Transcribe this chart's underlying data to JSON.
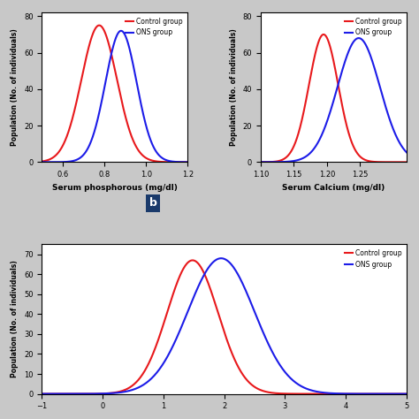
{
  "subplot_a": {
    "control_mean": 0.775,
    "control_std": 0.085,
    "control_peak": 75,
    "ons_mean": 0.88,
    "ons_std": 0.075,
    "ons_peak": 72,
    "xlim": [
      0.5,
      1.2
    ],
    "xticks": [
      0.6,
      0.8,
      1.0,
      1.2
    ],
    "ylim": [
      0,
      82
    ],
    "yticks": [
      0,
      20,
      40,
      60,
      80
    ],
    "xlabel": "Serum phosphorous (mg/dl)",
    "ylabel": "Population (No. of individuals)"
  },
  "subplot_b": {
    "control_mean": 1.195,
    "control_std": 0.022,
    "control_peak": 70,
    "ons_mean": 1.248,
    "ons_std": 0.032,
    "ons_peak": 68,
    "xlim": [
      1.1,
      1.32
    ],
    "xticks": [
      1.1,
      1.15,
      1.2,
      1.25
    ],
    "ylim": [
      0,
      82
    ],
    "yticks": [
      0,
      20,
      40,
      60,
      80
    ],
    "xlabel": "Serum Calcium (mg/dl)",
    "ylabel": "Population (No. of individuals)"
  },
  "subplot_c": {
    "control_mean": 1.48,
    "control_std": 0.42,
    "control_peak": 67,
    "ons_mean": 1.95,
    "ons_std": 0.55,
    "ons_peak": 68,
    "xlim": [
      -1,
      5
    ],
    "xticks": [
      -1,
      0,
      1,
      2,
      3,
      4,
      5
    ],
    "ylim": [
      0,
      75
    ],
    "yticks": [
      0,
      10,
      20,
      30,
      40,
      50,
      60,
      70
    ],
    "xlabel": "",
    "ylabel": "Population (No. of individuals)"
  },
  "control_color": "#e8191c",
  "ons_color": "#1c1ce8",
  "legend_control": "Control group",
  "legend_ons": "ONS group",
  "bg_color": "#ffffff",
  "fig_bg_color": "#c8c8c8",
  "linewidth": 1.5
}
